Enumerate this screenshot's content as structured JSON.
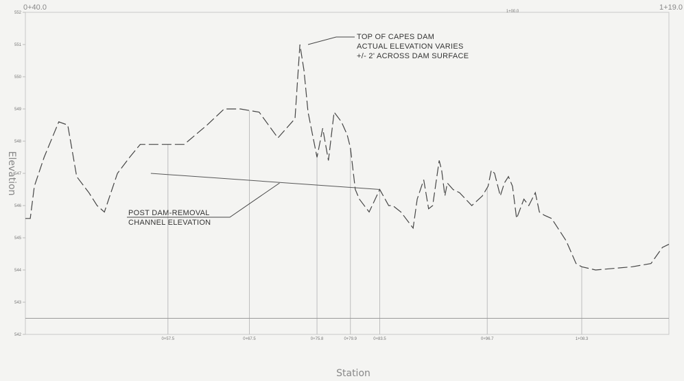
{
  "chart_data": {
    "type": "line",
    "title": "",
    "xlabel": "Station",
    "ylabel": "Elevation",
    "xlim": [
      40,
      119
    ],
    "ylim": [
      542,
      552
    ],
    "grid": false,
    "legend": "none",
    "top_labels": {
      "left": "0+40.0",
      "mid": "1+00.0",
      "right": "1+19.0"
    },
    "yticks": [
      "542",
      "543",
      "544",
      "545",
      "546",
      "547",
      "548",
      "549",
      "550",
      "551",
      "552"
    ],
    "stations": [
      {
        "x": 57.5,
        "label": "0+57.5"
      },
      {
        "x": 67.5,
        "label": "0+67.5"
      },
      {
        "x": 75.8,
        "label": "0+75.8"
      },
      {
        "x": 79.9,
        "label": "0+79.9"
      },
      {
        "x": 83.5,
        "label": "0+83.5"
      },
      {
        "x": 96.7,
        "label": "0+96.7"
      },
      {
        "x": 108.3,
        "label": "1+08.3"
      }
    ],
    "series": [
      {
        "style": "dashed",
        "x": [
          40,
          40.6,
          41.1,
          42.3,
          44.1,
          45.2,
          46.3,
          47.8,
          48.8,
          49.7,
          51.3,
          52.8,
          54.1,
          55.4,
          57.5,
          59.5,
          62.3,
          64.4,
          66.4,
          68.7,
          71.0,
          73.1,
          73.7,
          74.2,
          74.7,
          75.8,
          76.5,
          77.2,
          77.9,
          78.8,
          79.5,
          79.9,
          80.5,
          81.0,
          82.2,
          83.5,
          84.6,
          85.1,
          86.1,
          87.6,
          88.1,
          88.9,
          89.5,
          90.0,
          90.8,
          91.1,
          91.5,
          91.8,
          92.5,
          93.3,
          94.8,
          96.1,
          96.8,
          97.2,
          97.6,
          98.3,
          98.8,
          99.3,
          99.8,
          100.3,
          101.2,
          101.8,
          102.6,
          103.1,
          103.7,
          104.6,
          106.4,
          107.6,
          108.3,
          110.0,
          114.5,
          116.8,
          118.2,
          119.0
        ],
        "y": [
          545.6,
          545.6,
          546.6,
          547.5,
          548.6,
          548.5,
          546.9,
          546.4,
          546.0,
          545.8,
          547.0,
          547.5,
          547.9,
          547.9,
          547.9,
          547.9,
          548.5,
          549.0,
          549.0,
          548.9,
          548.1,
          548.7,
          551.0,
          550.2,
          548.9,
          547.5,
          548.4,
          547.4,
          548.9,
          548.6,
          548.2,
          547.8,
          546.5,
          546.2,
          545.8,
          546.5,
          546.0,
          546.0,
          545.8,
          545.3,
          546.2,
          546.8,
          545.9,
          546.0,
          547.4,
          547.1,
          546.3,
          546.7,
          546.5,
          546.4,
          546.0,
          546.3,
          546.6,
          547.1,
          547.0,
          546.3,
          546.7,
          546.9,
          546.6,
          545.6,
          546.2,
          546.0,
          546.4,
          545.8,
          545.7,
          545.6,
          544.9,
          544.2,
          544.1,
          544.0,
          544.1,
          544.2,
          544.7,
          544.8
        ]
      },
      {
        "style": "solid",
        "x": [
          55.4,
          83.5
        ],
        "y": [
          547.0,
          546.5
        ]
      },
      {
        "style": "solid",
        "x": [
          40,
          119
        ],
        "y": [
          542.5,
          542.5
        ]
      }
    ],
    "annotations": [
      {
        "lines": [
          "TOP OF CAPES DAM",
          "ACTUAL ELEVATION VARIES",
          "+/- 2' ACROSS DAM SURFACE"
        ],
        "target": {
          "x": 74.7,
          "y": 551.0
        }
      },
      {
        "lines": [
          "POST DAM-REMOVAL",
          "CHANNEL ELEVATION"
        ],
        "target": {
          "x": 71.2,
          "y": 546.7
        }
      }
    ]
  }
}
